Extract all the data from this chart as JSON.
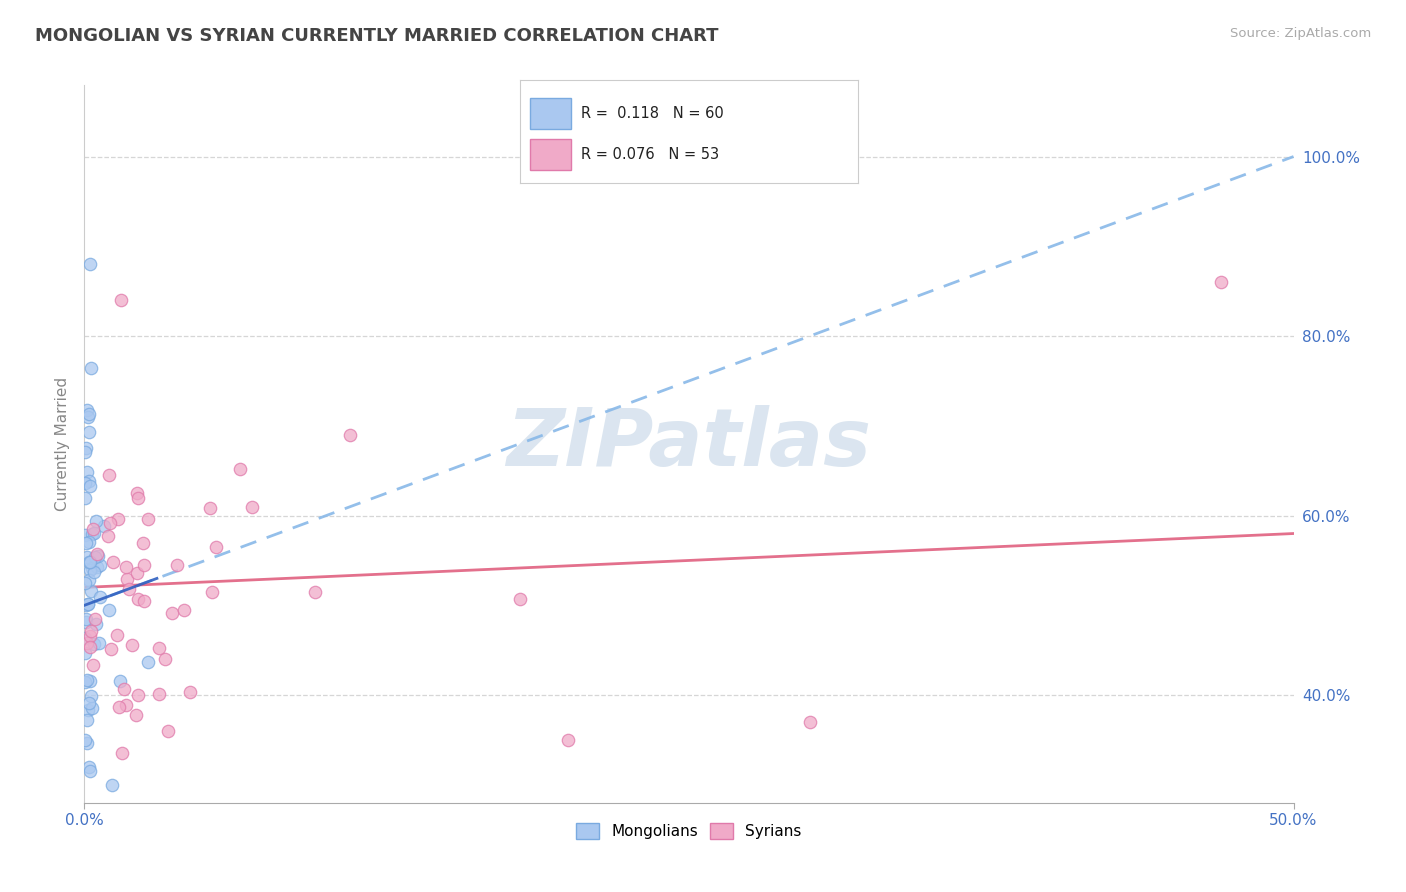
{
  "title": "MONGOLIAN VS SYRIAN CURRENTLY MARRIED CORRELATION CHART",
  "source": "Source: ZipAtlas.com",
  "ylabel": "Currently Married",
  "xlim": [
    0.0,
    50.0
  ],
  "ylim": [
    28.0,
    108.0
  ],
  "watermark": "ZIPatlas",
  "mongolian_R": 0.118,
  "mongolian_N": 60,
  "syrian_R": 0.076,
  "syrian_N": 53,
  "mongolian_color": "#aac8f0",
  "mongolian_edge": "#7aaae0",
  "syrian_color": "#f0aac8",
  "syrian_edge": "#e07aaa",
  "mongolian_line_color": "#88b8e8",
  "syrian_line_color": "#e06080",
  "title_color": "#444444",
  "source_color": "#aaaaaa",
  "axis_label_color": "#4472c4",
  "ylabel_color": "#888888",
  "background_color": "#ffffff",
  "grid_color": "#cccccc",
  "watermark_color": "#c8d8e8",
  "watermark_fontsize": 58,
  "dot_size": 80,
  "mongolian_line_x": [
    0.0,
    50.0
  ],
  "mongolian_line_y": [
    50.0,
    100.0
  ],
  "syrian_line_x": [
    0.0,
    50.0
  ],
  "syrian_line_y": [
    52.0,
    58.0
  ],
  "yticks": [
    40,
    60,
    80,
    100
  ],
  "xticks": [
    0,
    50
  ]
}
